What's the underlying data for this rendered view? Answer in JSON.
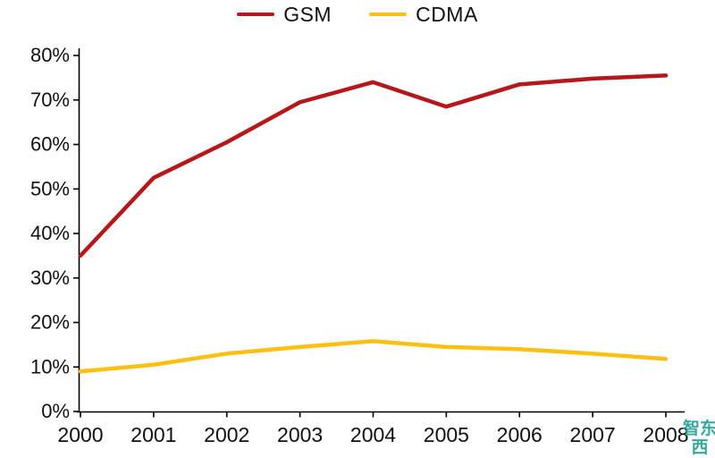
{
  "chart_data": {
    "type": "line",
    "title": "",
    "xlabel": "",
    "ylabel": "",
    "categories": [
      "2000",
      "2001",
      "2002",
      "2003",
      "2004",
      "2005",
      "2006",
      "2007",
      "2008"
    ],
    "series": [
      {
        "name": "GSM",
        "color": "#b5171a",
        "values": [
          35,
          52.5,
          60.5,
          69.5,
          74,
          68.5,
          73.5,
          74.8,
          75.5
        ]
      },
      {
        "name": "CDMA",
        "color": "#fdc012",
        "values": [
          9,
          10.5,
          13,
          14.5,
          15.8,
          14.5,
          14,
          13,
          11.8
        ]
      }
    ],
    "ylim": [
      0,
      80
    ],
    "ytick_step": 10,
    "ytick_labels": [
      "0%",
      "10%",
      "20%",
      "30%",
      "40%",
      "50%",
      "60%",
      "70%",
      "80%"
    ],
    "legend_position": "top",
    "grid": false,
    "axis_color": "#000000"
  },
  "watermark": {
    "text": "智东西",
    "color": "#2ea39b"
  }
}
